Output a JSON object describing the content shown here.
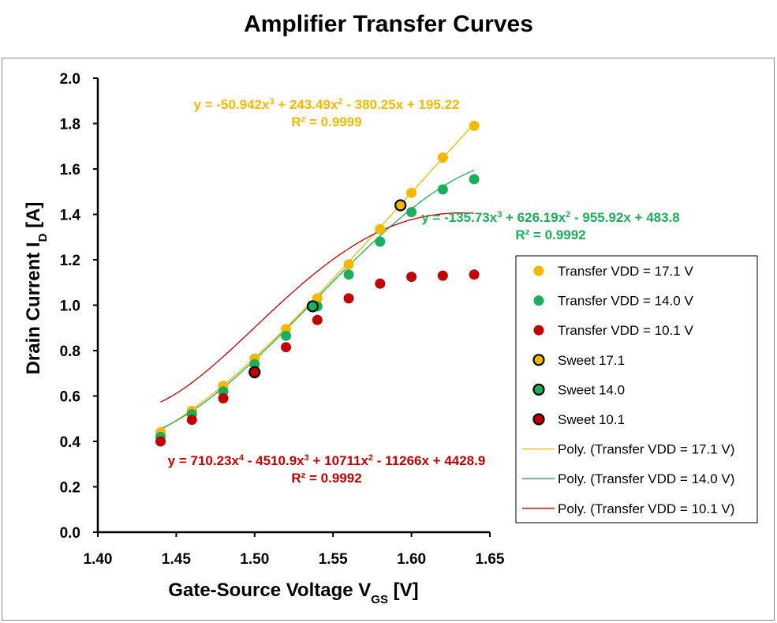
{
  "chart_data": {
    "type": "scatter",
    "title": "Amplifier Transfer Curves",
    "xlabel": "Gate-Source Voltage V",
    "xlabel_sub": "GS",
    "xlabel_unit": " [V]",
    "ylabel": "Drain Current I",
    "ylabel_sub": "D",
    "ylabel_unit": " [A]",
    "xlim": [
      1.4,
      1.65
    ],
    "ylim": [
      0.0,
      2.0
    ],
    "x_ticks": [
      1.4,
      1.45,
      1.5,
      1.55,
      1.6,
      1.65
    ],
    "y_ticks": [
      0.0,
      0.2,
      0.4,
      0.6,
      0.8,
      1.0,
      1.2,
      1.4,
      1.6,
      1.8,
      2.0
    ],
    "x_tick_labels": [
      "1.40",
      "1.45",
      "1.50",
      "1.55",
      "1.60",
      "1.65"
    ],
    "y_tick_labels": [
      "0.0",
      "0.2",
      "0.4",
      "0.6",
      "0.8",
      "1.0",
      "1.2",
      "1.4",
      "1.6",
      "1.8",
      "2.0"
    ],
    "grid": false,
    "legend_position": "right",
    "series": [
      {
        "name": "Transfer VDD = 17.1 V",
        "color": "#f5b800",
        "x": [
          1.44,
          1.46,
          1.48,
          1.5,
          1.52,
          1.54,
          1.56,
          1.58,
          1.6,
          1.62,
          1.64
        ],
        "y": [
          0.44,
          0.535,
          0.645,
          0.765,
          0.895,
          1.03,
          1.18,
          1.335,
          1.495,
          1.65,
          1.79
        ]
      },
      {
        "name": "Transfer VDD = 14.0 V",
        "color": "#1cae5a",
        "x": [
          1.44,
          1.46,
          1.48,
          1.5,
          1.52,
          1.54,
          1.56,
          1.58,
          1.6,
          1.62,
          1.64
        ],
        "y": [
          0.42,
          0.52,
          0.62,
          0.74,
          0.865,
          0.995,
          1.135,
          1.28,
          1.41,
          1.51,
          1.555
        ]
      },
      {
        "name": "Transfer VDD = 10.1 V",
        "color": "#c00000",
        "x": [
          1.44,
          1.46,
          1.48,
          1.5,
          1.52,
          1.54,
          1.56,
          1.58,
          1.6,
          1.62,
          1.64
        ],
        "y": [
          0.4,
          0.495,
          0.59,
          0.7,
          0.815,
          0.935,
          1.03,
          1.095,
          1.125,
          1.13,
          1.135
        ]
      }
    ],
    "sweet_points": [
      {
        "name": "Sweet 17.1",
        "color": "#f5b800",
        "x": 1.593,
        "y": 1.44
      },
      {
        "name": "Sweet 14.0",
        "color": "#1cae5a",
        "x": 1.537,
        "y": 0.995
      },
      {
        "name": "Sweet 10.1",
        "color": "#c00000",
        "x": 1.5,
        "y": 0.705
      }
    ],
    "trendlines": [
      {
        "name": "Poly. (Transfer VDD = 17.1 V)",
        "color": "#f5b800",
        "coeffs": [
          -50.942,
          243.49,
          -380.25,
          195.22
        ]
      },
      {
        "name": "Poly. (Transfer VDD = 14.0 V)",
        "color": "#1cae5a",
        "coeffs": [
          -135.73,
          626.19,
          -955.92,
          483.8
        ]
      },
      {
        "name": "Poly. (Transfer VDD = 10.1 V)",
        "color": "#c00000",
        "coeffs": [
          710.23,
          -4510.9,
          10711,
          -11266,
          4428.9
        ]
      }
    ],
    "annotations": [
      {
        "color": "#f5b800",
        "equation_html": "y = -50.942x<tspan baseline-shift='super' font-size='11'>3</tspan> + 243.49x<tspan baseline-shift='super' font-size='11'>2</tspan> - 380.25x + 195.22",
        "r2": "R² = 0.9999"
      },
      {
        "color": "#1cae5a",
        "equation_html": "y = -135.73x<tspan baseline-shift='super' font-size='11'>3</tspan> + 626.19x<tspan baseline-shift='super' font-size='11'>2</tspan> - 955.92x + 483.8",
        "r2": "R² = 0.9992"
      },
      {
        "color": "#c00000",
        "equation_html": "y = 710.23x<tspan baseline-shift='super' font-size='11'>4</tspan> - 4510.9x<tspan baseline-shift='super' font-size='11'>3</tspan> + 10711x<tspan baseline-shift='super' font-size='11'>2</tspan> - 11266x + 4428.9",
        "r2": "R² = 0.9992"
      }
    ]
  }
}
